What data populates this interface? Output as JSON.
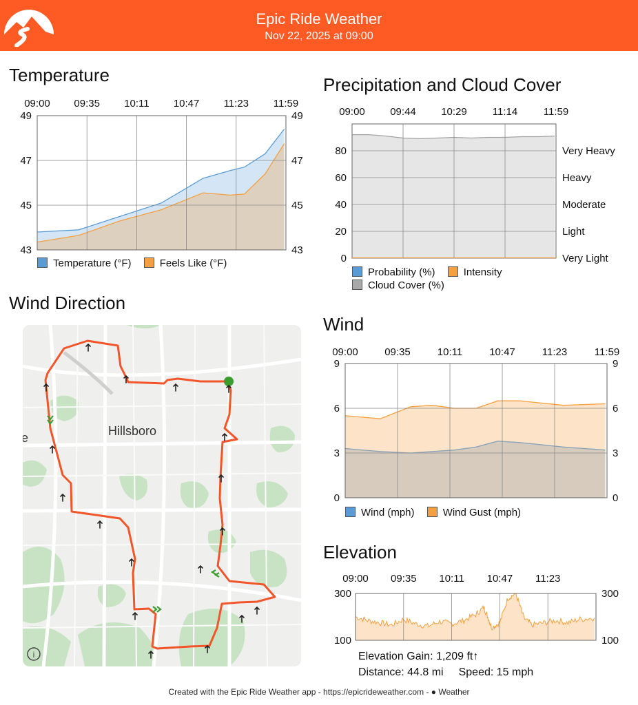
{
  "header": {
    "app_title": "Epic Ride Weather",
    "datetime": "Nov 22, 2025 at 09:00",
    "colors": {
      "bar": "#fd5a24",
      "text": "#ffffff"
    }
  },
  "temperature": {
    "title": "Temperature",
    "chart_data": {
      "type": "area",
      "time_ticks": [
        "09:00",
        "09:35",
        "10:11",
        "10:47",
        "11:23",
        "11:59"
      ],
      "y_ticks": [
        43,
        45,
        47,
        49
      ],
      "ylim": [
        43,
        49
      ],
      "x_hours": [
        0,
        0.5,
        1,
        1.5,
        2,
        2.33,
        2.5,
        2.75,
        2.98
      ],
      "series": [
        {
          "name": "Temperature (°F)",
          "color": "#5b9bd5",
          "values": [
            43.8,
            43.9,
            44.5,
            45.1,
            46.2,
            46.55,
            46.7,
            47.3,
            48.4
          ]
        },
        {
          "name": "Feels Like (°F)",
          "color": "#f5a040",
          "values": [
            43.35,
            43.65,
            44.3,
            44.8,
            45.55,
            45.45,
            45.5,
            46.4,
            47.75
          ]
        }
      ],
      "legend": "bottom-left"
    }
  },
  "precipitation": {
    "title": "Precipitation and Cloud Cover",
    "chart_data": {
      "type": "area",
      "time_ticks": [
        "09:00",
        "09:44",
        "10:29",
        "11:14",
        "11:59"
      ],
      "y_ticks": [
        0,
        20,
        40,
        60,
        80
      ],
      "ylim": [
        0,
        100
      ],
      "intensity_labels": [
        "Very Light",
        "Light",
        "Moderate",
        "Heavy",
        "Very Heavy"
      ],
      "x_hours": [
        0,
        0.25,
        0.5,
        0.75,
        1,
        1.25,
        1.5,
        1.75,
        2,
        2.25,
        2.5,
        2.75,
        2.98
      ],
      "series": [
        {
          "name": "Probability (%)",
          "color": "#5b9bd5",
          "values": [
            0,
            0,
            0,
            0,
            0,
            0,
            0,
            0,
            0,
            0,
            0,
            0,
            0
          ]
        },
        {
          "name": "Intensity",
          "color": "#f5a040",
          "values": [
            0,
            0,
            0,
            0,
            0,
            0,
            0,
            0,
            0,
            0,
            0,
            0,
            0
          ]
        },
        {
          "name": "Cloud Cover (%)",
          "color": "#a9a9a9",
          "values": [
            92,
            92,
            91,
            89.5,
            89,
            89.5,
            90,
            89.5,
            90,
            90,
            90.5,
            90.5,
            91
          ]
        }
      ],
      "legend": "bottom-left"
    }
  },
  "wind_direction": {
    "title": "Wind Direction",
    "map_label": "Hillsboro",
    "edge_label": "e",
    "info_icon": "info-icon",
    "route_color": "#f0562a"
  },
  "wind": {
    "title": "Wind",
    "chart_data": {
      "type": "area",
      "time_ticks": [
        "09:00",
        "09:35",
        "10:11",
        "10:47",
        "11:23",
        "11:59"
      ],
      "y_ticks": [
        0,
        3,
        6,
        9
      ],
      "ylim": [
        0,
        9
      ],
      "x_hours": [
        0,
        0.4,
        0.75,
        1,
        1.25,
        1.5,
        1.75,
        2,
        2.5,
        2.98
      ],
      "series": [
        {
          "name": "Wind (mph)",
          "color": "#5b9bd5",
          "values": [
            3.3,
            3.1,
            3.0,
            3.1,
            3.2,
            3.4,
            3.8,
            3.7,
            3.4,
            3.2
          ]
        },
        {
          "name": "Wind Gust (mph)",
          "color": "#f5a040",
          "values": [
            5.5,
            5.3,
            6.1,
            6.2,
            6.0,
            6.0,
            6.5,
            6.5,
            6.2,
            6.3
          ]
        }
      ],
      "legend": "bottom-left"
    }
  },
  "elevation": {
    "title": "Elevation",
    "chart_data": {
      "type": "area",
      "time_ticks": [
        "09:00",
        "09:35",
        "10:11",
        "10:47",
        "11:23"
      ],
      "y_ticks": [
        100,
        300
      ],
      "ylim": [
        100,
        300
      ],
      "x_hours": [
        0,
        0.15,
        0.3,
        0.45,
        0.6,
        0.75,
        0.9,
        1.05,
        1.2,
        1.35,
        1.5,
        1.6,
        1.65,
        1.7,
        1.8,
        1.9,
        2.0,
        2.1,
        2.2,
        2.35,
        2.5,
        2.65,
        2.8,
        2.98
      ],
      "series": [
        {
          "name": "Elevation",
          "color": "#f5a040",
          "values": [
            200,
            185,
            175,
            165,
            190,
            170,
            160,
            180,
            170,
            185,
            210,
            240,
            200,
            155,
            175,
            280,
            300,
            195,
            165,
            175,
            185,
            175,
            190,
            195
          ]
        }
      ]
    },
    "gain_text": "Elevation Gain: 1,209 ft↑",
    "distance_text": "Distance: 44.8 mi",
    "speed_text": "Speed: 15 mph"
  },
  "footer": {
    "text": "Created with the Epic Ride Weather app - https://epicrideweather.com -",
    "weather_text": "Weather",
    "apple_icon": "apple-icon"
  }
}
